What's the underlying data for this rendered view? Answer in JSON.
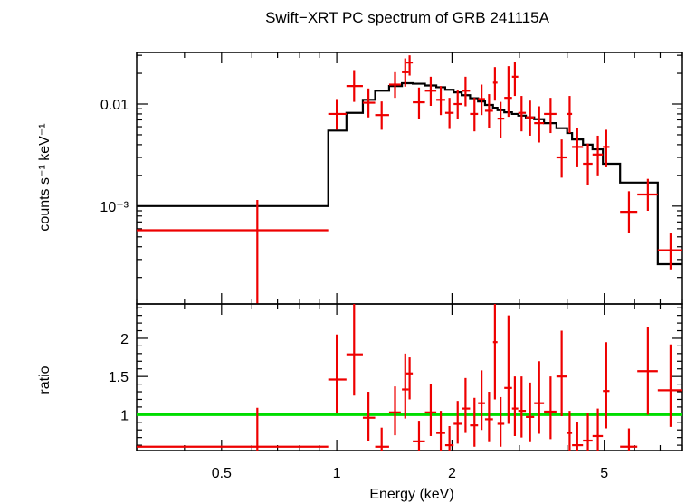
{
  "chart_data": [
    {
      "type": "scatter",
      "title": "Swift−XRT PC spectrum of GRB 241115A",
      "ylabel": "counts s⁻¹ keV⁻¹",
      "xscale": "log",
      "yscale": "log",
      "xlim": [
        0.3,
        8.0
      ],
      "ylim": [
        0.00011,
        0.032
      ],
      "yticks": [
        {
          "value": 0.01,
          "label": "0.01"
        },
        {
          "value": 0.001,
          "label": "10⁻³"
        }
      ],
      "colors": {
        "data": "#ee0000",
        "model": "#000000"
      },
      "series": [
        {
          "style": "crosses",
          "points": [
            {
              "x": 0.62,
              "xlo": 0.3,
              "xhi": 0.95,
              "y": 0.00058,
              "ylo": 0.00011,
              "yhi": 0.00115
            },
            {
              "x": 1.0,
              "xlo": 0.95,
              "xhi": 1.06,
              "y": 0.008,
              "ylo": 0.0056,
              "yhi": 0.0112
            },
            {
              "x": 1.11,
              "xlo": 1.06,
              "xhi": 1.17,
              "y": 0.015,
              "ylo": 0.0105,
              "yhi": 0.0215
            },
            {
              "x": 1.21,
              "xlo": 1.17,
              "xhi": 1.26,
              "y": 0.0103,
              "ylo": 0.0074,
              "yhi": 0.0142
            },
            {
              "x": 1.31,
              "xlo": 1.26,
              "xhi": 1.37,
              "y": 0.0078,
              "ylo": 0.0056,
              "yhi": 0.0106
            },
            {
              "x": 1.42,
              "xlo": 1.37,
              "xhi": 1.47,
              "y": 0.0155,
              "ylo": 0.0115,
              "yhi": 0.0205
            },
            {
              "x": 1.51,
              "xlo": 1.48,
              "xhi": 1.54,
              "y": 0.0205,
              "ylo": 0.0148,
              "yhi": 0.028
            },
            {
              "x": 1.55,
              "xlo": 1.52,
              "xhi": 1.58,
              "y": 0.0255,
              "ylo": 0.019,
              "yhi": 0.03
            },
            {
              "x": 1.64,
              "xlo": 1.58,
              "xhi": 1.7,
              "y": 0.0104,
              "ylo": 0.0072,
              "yhi": 0.0145
            },
            {
              "x": 1.76,
              "xlo": 1.7,
              "xhi": 1.82,
              "y": 0.0135,
              "ylo": 0.0096,
              "yhi": 0.0185
            },
            {
              "x": 1.87,
              "xlo": 1.82,
              "xhi": 1.92,
              "y": 0.011,
              "ylo": 0.0078,
              "yhi": 0.015
            },
            {
              "x": 1.97,
              "xlo": 1.92,
              "xhi": 2.02,
              "y": 0.0082,
              "ylo": 0.0057,
              "yhi": 0.0115
            },
            {
              "x": 2.07,
              "xlo": 2.02,
              "xhi": 2.12,
              "y": 0.01,
              "ylo": 0.0071,
              "yhi": 0.0138
            },
            {
              "x": 2.17,
              "xlo": 2.12,
              "xhi": 2.23,
              "y": 0.0135,
              "ylo": 0.0095,
              "yhi": 0.0185
            },
            {
              "x": 2.29,
              "xlo": 2.23,
              "xhi": 2.34,
              "y": 0.008,
              "ylo": 0.0054,
              "yhi": 0.0115
            },
            {
              "x": 2.39,
              "xlo": 2.34,
              "xhi": 2.44,
              "y": 0.0112,
              "ylo": 0.0078,
              "yhi": 0.0155
            },
            {
              "x": 2.5,
              "xlo": 2.44,
              "xhi": 2.56,
              "y": 0.0086,
              "ylo": 0.0058,
              "yhi": 0.0125
            },
            {
              "x": 2.59,
              "xlo": 2.56,
              "xhi": 2.63,
              "y": 0.0162,
              "ylo": 0.0108,
              "yhi": 0.023
            },
            {
              "x": 2.68,
              "xlo": 2.63,
              "xhi": 2.74,
              "y": 0.0072,
              "ylo": 0.0047,
              "yhi": 0.0105
            },
            {
              "x": 2.81,
              "xlo": 2.74,
              "xhi": 2.87,
              "y": 0.0115,
              "ylo": 0.0075,
              "yhi": 0.0235
            },
            {
              "x": 2.92,
              "xlo": 2.87,
              "xhi": 2.98,
              "y": 0.0185,
              "ylo": 0.012,
              "yhi": 0.026
            },
            {
              "x": 3.04,
              "xlo": 2.98,
              "xhi": 3.12,
              "y": 0.0082,
              "ylo": 0.0054,
              "yhi": 0.012
            },
            {
              "x": 3.2,
              "xlo": 3.12,
              "xhi": 3.28,
              "y": 0.0074,
              "ylo": 0.0049,
              "yhi": 0.0108
            },
            {
              "x": 3.38,
              "xlo": 3.28,
              "xhi": 3.48,
              "y": 0.0065,
              "ylo": 0.0042,
              "yhi": 0.0095
            },
            {
              "x": 3.62,
              "xlo": 3.48,
              "xhi": 3.75,
              "y": 0.008,
              "ylo": 0.0052,
              "yhi": 0.0115
            },
            {
              "x": 3.87,
              "xlo": 3.75,
              "xhi": 4.0,
              "y": 0.003,
              "ylo": 0.0019,
              "yhi": 0.0045
            },
            {
              "x": 4.06,
              "xlo": 4.0,
              "xhi": 4.12,
              "y": 0.008,
              "ylo": 0.0052,
              "yhi": 0.012
            },
            {
              "x": 4.25,
              "xlo": 4.12,
              "xhi": 4.4,
              "y": 0.0038,
              "ylo": 0.0024,
              "yhi": 0.0058
            },
            {
              "x": 4.53,
              "xlo": 4.4,
              "xhi": 4.66,
              "y": 0.0026,
              "ylo": 0.0016,
              "yhi": 0.0041
            },
            {
              "x": 4.81,
              "xlo": 4.66,
              "xhi": 4.96,
              "y": 0.0032,
              "ylo": 0.002,
              "yhi": 0.0049
            },
            {
              "x": 5.06,
              "xlo": 4.96,
              "xhi": 5.16,
              "y": 0.0038,
              "ylo": 0.0024,
              "yhi": 0.0056
            },
            {
              "x": 5.8,
              "xlo": 5.5,
              "xhi": 6.1,
              "y": 0.00088,
              "ylo": 0.00055,
              "yhi": 0.0014
            },
            {
              "x": 6.5,
              "xlo": 6.1,
              "xhi": 6.9,
              "y": 0.0013,
              "ylo": 0.0009,
              "yhi": 0.00185
            },
            {
              "x": 7.45,
              "xlo": 6.9,
              "xhi": 8.0,
              "y": 0.00037,
              "ylo": 0.00024,
              "yhi": 0.00054
            }
          ]
        },
        {
          "style": "step",
          "steps": [
            {
              "xlo": 0.3,
              "xhi": 0.95,
              "y": 0.001
            },
            {
              "xlo": 0.95,
              "xhi": 1.06,
              "y": 0.0055
            },
            {
              "xlo": 1.06,
              "xhi": 1.17,
              "y": 0.0082
            },
            {
              "xlo": 1.17,
              "xhi": 1.26,
              "y": 0.011
            },
            {
              "xlo": 1.26,
              "xhi": 1.37,
              "y": 0.0135
            },
            {
              "xlo": 1.37,
              "xhi": 1.48,
              "y": 0.015
            },
            {
              "xlo": 1.48,
              "xhi": 1.58,
              "y": 0.016
            },
            {
              "xlo": 1.58,
              "xhi": 1.7,
              "y": 0.0158
            },
            {
              "xlo": 1.7,
              "xhi": 1.82,
              "y": 0.0152
            },
            {
              "xlo": 1.82,
              "xhi": 1.92,
              "y": 0.0146
            },
            {
              "xlo": 1.92,
              "xhi": 2.02,
              "y": 0.0138
            },
            {
              "xlo": 2.02,
              "xhi": 2.12,
              "y": 0.013
            },
            {
              "xlo": 2.12,
              "xhi": 2.23,
              "y": 0.0122
            },
            {
              "xlo": 2.23,
              "xhi": 2.34,
              "y": 0.0114
            },
            {
              "xlo": 2.34,
              "xhi": 2.44,
              "y": 0.0106
            },
            {
              "xlo": 2.44,
              "xhi": 2.56,
              "y": 0.0098
            },
            {
              "xlo": 2.56,
              "xhi": 2.63,
              "y": 0.0092
            },
            {
              "xlo": 2.63,
              "xhi": 2.74,
              "y": 0.0087
            },
            {
              "xlo": 2.74,
              "xhi": 2.87,
              "y": 0.0083
            },
            {
              "xlo": 2.87,
              "xhi": 2.98,
              "y": 0.008
            },
            {
              "xlo": 2.98,
              "xhi": 3.12,
              "y": 0.0077
            },
            {
              "xlo": 3.12,
              "xhi": 3.28,
              "y": 0.0074
            },
            {
              "xlo": 3.28,
              "xhi": 3.48,
              "y": 0.0071
            },
            {
              "xlo": 3.48,
              "xhi": 3.75,
              "y": 0.0065
            },
            {
              "xlo": 3.75,
              "xhi": 4.0,
              "y": 0.0058
            },
            {
              "xlo": 4.0,
              "xhi": 4.12,
              "y": 0.0052
            },
            {
              "xlo": 4.12,
              "xhi": 4.4,
              "y": 0.0045
            },
            {
              "xlo": 4.4,
              "xhi": 4.66,
              "y": 0.004
            },
            {
              "xlo": 4.66,
              "xhi": 4.96,
              "y": 0.0036
            },
            {
              "xlo": 4.96,
              "xhi": 5.5,
              "y": 0.0026
            },
            {
              "xlo": 5.5,
              "xhi": 6.9,
              "y": 0.0017
            },
            {
              "xlo": 6.9,
              "xhi": 8.0,
              "y": 0.00027
            }
          ]
        }
      ]
    },
    {
      "type": "scatter",
      "xlabel": "Energy (keV)",
      "ylabel": "ratio",
      "xscale": "log",
      "xlim": [
        0.3,
        8.0
      ],
      "ylim": [
        0.53,
        2.45
      ],
      "yticks": [
        {
          "value": 1,
          "label": "1"
        },
        {
          "value": 1.5,
          "label": "1.5"
        },
        {
          "value": 2,
          "label": "2"
        }
      ],
      "xticks": [
        {
          "value": 0.5,
          "label": "0.5"
        },
        {
          "value": 1,
          "label": "1"
        },
        {
          "value": 2,
          "label": "2"
        },
        {
          "value": 5,
          "label": "5"
        }
      ],
      "reference_line": 1,
      "colors": {
        "data": "#ee0000",
        "reference": "#00dd00"
      },
      "series": [
        {
          "style": "crosses",
          "points": [
            {
              "x": 0.62,
              "xlo": 0.3,
              "xhi": 0.95,
              "y": 0.58,
              "ylo": 0.53,
              "yhi": 1.09
            },
            {
              "x": 1.0,
              "xlo": 0.95,
              "xhi": 1.06,
              "y": 1.46,
              "ylo": 1.02,
              "yhi": 2.05
            },
            {
              "x": 1.11,
              "xlo": 1.06,
              "xhi": 1.17,
              "y": 1.79,
              "ylo": 1.25,
              "yhi": 2.45
            },
            {
              "x": 1.21,
              "xlo": 1.17,
              "xhi": 1.26,
              "y": 0.96,
              "ylo": 0.65,
              "yhi": 1.3
            },
            {
              "x": 1.31,
              "xlo": 1.26,
              "xhi": 1.37,
              "y": 0.58,
              "ylo": 0.53,
              "yhi": 0.83
            },
            {
              "x": 1.42,
              "xlo": 1.37,
              "xhi": 1.47,
              "y": 1.03,
              "ylo": 0.73,
              "yhi": 1.37
            },
            {
              "x": 1.51,
              "xlo": 1.48,
              "xhi": 1.54,
              "y": 1.33,
              "ylo": 0.95,
              "yhi": 1.8
            },
            {
              "x": 1.55,
              "xlo": 1.52,
              "xhi": 1.58,
              "y": 1.54,
              "ylo": 1.2,
              "yhi": 1.75
            },
            {
              "x": 1.64,
              "xlo": 1.58,
              "xhi": 1.7,
              "y": 0.65,
              "ylo": 0.53,
              "yhi": 0.92
            },
            {
              "x": 1.76,
              "xlo": 1.7,
              "xhi": 1.82,
              "y": 1.03,
              "ylo": 0.72,
              "yhi": 1.4
            },
            {
              "x": 1.87,
              "xlo": 1.82,
              "xhi": 1.92,
              "y": 0.76,
              "ylo": 0.53,
              "yhi": 1.05
            },
            {
              "x": 1.97,
              "xlo": 1.92,
              "xhi": 2.02,
              "y": 0.6,
              "ylo": 0.53,
              "yhi": 0.85
            },
            {
              "x": 2.07,
              "xlo": 2.02,
              "xhi": 2.12,
              "y": 0.88,
              "ylo": 0.62,
              "yhi": 1.18
            },
            {
              "x": 2.17,
              "xlo": 2.12,
              "xhi": 2.23,
              "y": 1.08,
              "ylo": 0.76,
              "yhi": 1.48
            },
            {
              "x": 2.29,
              "xlo": 2.23,
              "xhi": 2.34,
              "y": 0.86,
              "ylo": 0.58,
              "yhi": 1.22
            },
            {
              "x": 2.39,
              "xlo": 2.34,
              "xhi": 2.44,
              "y": 1.15,
              "ylo": 0.8,
              "yhi": 1.58
            },
            {
              "x": 2.5,
              "xlo": 2.44,
              "xhi": 2.56,
              "y": 0.94,
              "ylo": 0.64,
              "yhi": 1.3
            },
            {
              "x": 2.59,
              "xlo": 2.56,
              "xhi": 2.63,
              "y": 1.95,
              "ylo": 1.2,
              "yhi": 2.45
            },
            {
              "x": 2.68,
              "xlo": 2.63,
              "xhi": 2.74,
              "y": 0.88,
              "ylo": 0.58,
              "yhi": 1.23
            },
            {
              "x": 2.81,
              "xlo": 2.74,
              "xhi": 2.87,
              "y": 1.35,
              "ylo": 0.88,
              "yhi": 2.3
            },
            {
              "x": 2.92,
              "xlo": 2.87,
              "xhi": 2.98,
              "y": 1.08,
              "ylo": 0.72,
              "yhi": 1.5
            },
            {
              "x": 3.04,
              "xlo": 2.98,
              "xhi": 3.12,
              "y": 1.05,
              "ylo": 0.7,
              "yhi": 1.5
            },
            {
              "x": 3.2,
              "xlo": 3.12,
              "xhi": 3.28,
              "y": 0.97,
              "ylo": 0.64,
              "yhi": 1.42
            },
            {
              "x": 3.38,
              "xlo": 3.28,
              "xhi": 3.48,
              "y": 1.15,
              "ylo": 0.75,
              "yhi": 1.7
            },
            {
              "x": 3.62,
              "xlo": 3.48,
              "xhi": 3.75,
              "y": 1.04,
              "ylo": 0.68,
              "yhi": 1.5
            },
            {
              "x": 3.87,
              "xlo": 3.75,
              "xhi": 4.0,
              "y": 1.5,
              "ylo": 0.98,
              "yhi": 2.1
            },
            {
              "x": 4.06,
              "xlo": 4.0,
              "xhi": 4.12,
              "y": 0.76,
              "ylo": 0.53,
              "yhi": 1.05
            },
            {
              "x": 4.25,
              "xlo": 4.12,
              "xhi": 4.4,
              "y": 0.6,
              "ylo": 0.53,
              "yhi": 0.9
            },
            {
              "x": 4.53,
              "xlo": 4.4,
              "xhi": 4.66,
              "y": 0.66,
              "ylo": 0.53,
              "yhi": 1.02
            },
            {
              "x": 4.81,
              "xlo": 4.66,
              "xhi": 4.96,
              "y": 0.72,
              "ylo": 0.53,
              "yhi": 1.08
            },
            {
              "x": 5.06,
              "xlo": 4.96,
              "xhi": 5.16,
              "y": 1.31,
              "ylo": 0.82,
              "yhi": 1.95
            },
            {
              "x": 5.8,
              "xlo": 5.5,
              "xhi": 6.1,
              "y": 0.58,
              "ylo": 0.53,
              "yhi": 0.82
            },
            {
              "x": 6.5,
              "xlo": 6.1,
              "xhi": 6.9,
              "y": 1.57,
              "ylo": 1.0,
              "yhi": 2.15
            },
            {
              "x": 7.45,
              "xlo": 6.9,
              "xhi": 8.0,
              "y": 1.32,
              "ylo": 0.84,
              "yhi": 1.92
            }
          ]
        }
      ]
    }
  ]
}
